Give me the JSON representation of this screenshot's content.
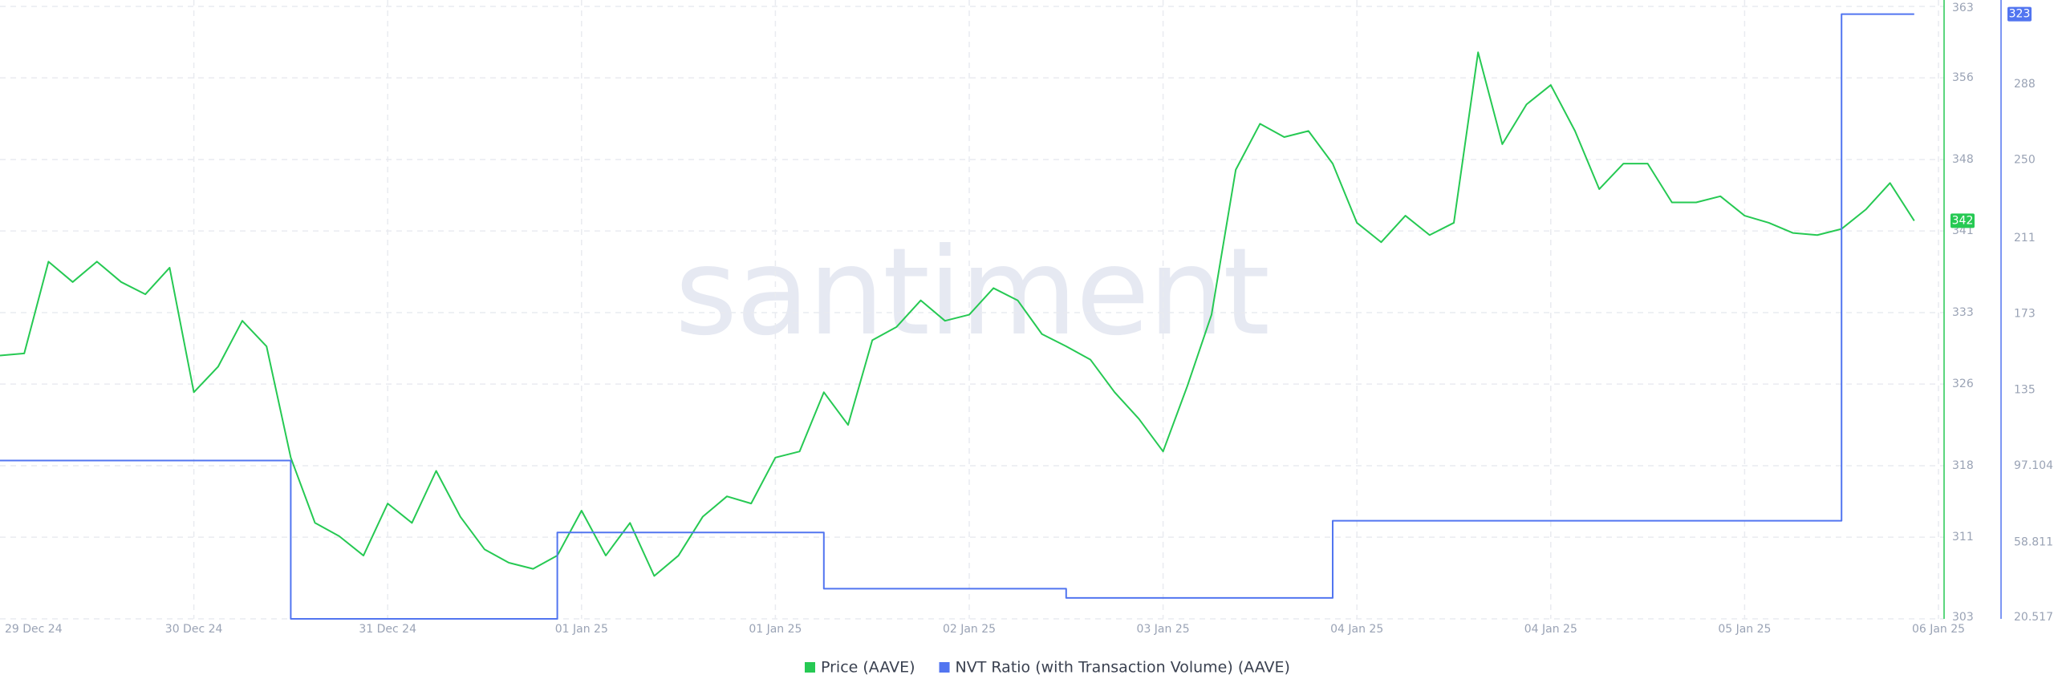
{
  "chart_data": {
    "type": "line",
    "watermark": "santiment",
    "categories": [
      "29 Dec 24",
      null,
      null,
      null,
      null,
      null,
      null,
      null,
      "30 Dec 24",
      null,
      null,
      null,
      null,
      null,
      null,
      null,
      "31 Dec 24",
      null,
      null,
      null,
      null,
      null,
      null,
      null,
      "01 Jan 25",
      null,
      null,
      null,
      null,
      null,
      null,
      null,
      "01 Jan 25",
      null,
      null,
      null,
      null,
      null,
      null,
      null,
      "02 Jan 25",
      null,
      null,
      null,
      null,
      null,
      null,
      null,
      "03 Jan 25",
      null,
      null,
      null,
      null,
      null,
      null,
      null,
      "04 Jan 25",
      null,
      null,
      null,
      null,
      null,
      null,
      null,
      "04 Jan 25",
      null,
      null,
      null,
      null,
      null,
      null,
      null,
      "05 Jan 25",
      null,
      null,
      null,
      null,
      null,
      null,
      null,
      "06 Jan 25"
    ],
    "series": [
      {
        "name": "Price (AAVE)",
        "color": "#26c953",
        "values": [
          328.8,
          329,
          338,
          336,
          338,
          336,
          334.8,
          337.4,
          325.2,
          327.7,
          332.2,
          329.7,
          318.8,
          312.4,
          311.1,
          309.2,
          314.3,
          312.4,
          317.5,
          313,
          309.8,
          308.5,
          307.9,
          309.2,
          313.6,
          309.2,
          312.4,
          307.2,
          309.2,
          313,
          315,
          314.3,
          318.8,
          319.4,
          325.2,
          322,
          330.3,
          331.6,
          334.2,
          332.2,
          332.8,
          335.4,
          334.2,
          330.9,
          329.7,
          328.4,
          325.2,
          322.6,
          319.4,
          325.8,
          332.8,
          347,
          351.5,
          350.2,
          350.8,
          347.6,
          341.8,
          339.9,
          342.5,
          340.6,
          341.8,
          358.5,
          349.5,
          353.4,
          355.3,
          350.8,
          345.1,
          347.6,
          347.6,
          343.8,
          343.8,
          344.4,
          342.5,
          341.8,
          340.8,
          340.6,
          341.2,
          343.1,
          345.7,
          342,
          null
        ]
      },
      {
        "name": "NVT Ratio (with Transaction Volume) (AAVE)",
        "color": "#5275f0",
        "axis": "y2",
        "step": true,
        "values": [
          99.7,
          99.7,
          99.7,
          99.7,
          99.7,
          99.7,
          99.7,
          99.7,
          99.7,
          99.7,
          99.7,
          99.7,
          20.517,
          20.517,
          20.517,
          20.517,
          20.517,
          20.517,
          20.517,
          20.517,
          20.517,
          20.517,
          20.517,
          63.7,
          63.7,
          63.7,
          63.7,
          63.7,
          63.7,
          63.7,
          63.7,
          63.7,
          63.7,
          63.7,
          35.6,
          35.6,
          35.6,
          35.6,
          35.6,
          35.6,
          35.6,
          35.6,
          35.6,
          35.6,
          31,
          31,
          31,
          31,
          31,
          31,
          31,
          31,
          31,
          31,
          31,
          69.6,
          69.6,
          69.6,
          69.6,
          69.6,
          69.6,
          69.6,
          69.6,
          69.6,
          69.6,
          69.6,
          69.6,
          69.6,
          69.6,
          69.6,
          69.6,
          69.6,
          69.6,
          69.6,
          69.6,
          69.6,
          323,
          323,
          323,
          323,
          null
        ]
      }
    ],
    "ylim": [
      303,
      363
    ],
    "yticks": [
      303,
      311,
      318,
      326,
      333,
      341,
      348,
      356,
      363
    ],
    "y2lim": [
      20.517,
      326.86
    ],
    "y2ticks": [
      20.517,
      58.811,
      97.104,
      135,
      173,
      211,
      250,
      288
    ],
    "grid": true
  }
}
